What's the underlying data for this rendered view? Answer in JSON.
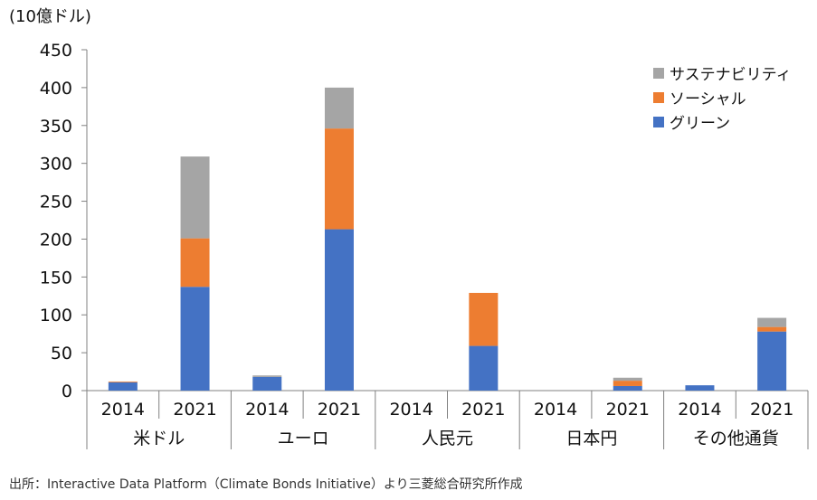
{
  "chart_data": {
    "type": "bar",
    "stacked": true,
    "unit_label": "(10億ドル)",
    "source": "出所：Interactive Data Platform（Climate Bonds Initiative）より三菱総合研究所作成",
    "groups": [
      "米ドル",
      "ユーロ",
      "人民元",
      "日本円",
      "その他通貨"
    ],
    "years": [
      "2014",
      "2021"
    ],
    "ylim": [
      0,
      450
    ],
    "yticks": [
      0,
      50,
      100,
      150,
      200,
      250,
      300,
      350,
      400,
      450
    ],
    "legend_position": "top-right",
    "series": [
      {
        "name": "グリーン",
        "color": "#4472C4",
        "values": [
          [
            11,
            137
          ],
          [
            18,
            213
          ],
          [
            0,
            59
          ],
          [
            0,
            6
          ],
          [
            7,
            78
          ]
        ]
      },
      {
        "name": "ソーシャル",
        "color": "#ED7D31",
        "values": [
          [
            1,
            64
          ],
          [
            0,
            133
          ],
          [
            0,
            70
          ],
          [
            0,
            7
          ],
          [
            0,
            6
          ]
        ]
      },
      {
        "name": "サステナビリティ",
        "color": "#A5A5A5",
        "values": [
          [
            0,
            108
          ],
          [
            2,
            54
          ],
          [
            0,
            0
          ],
          [
            0,
            4
          ],
          [
            0,
            12
          ]
        ]
      }
    ],
    "legend_order": [
      "サステナビリティ",
      "ソーシャル",
      "グリーン"
    ]
  }
}
